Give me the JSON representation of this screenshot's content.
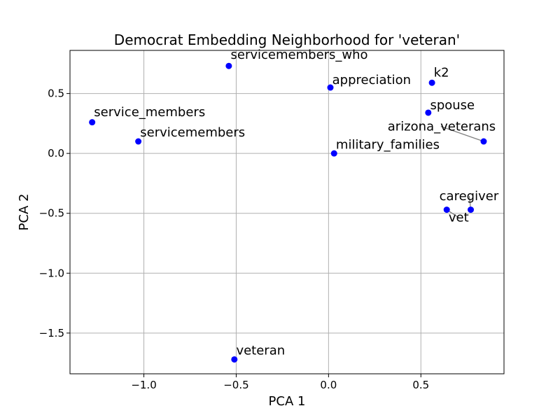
{
  "chart_data": {
    "type": "scatter",
    "title": "Democrat Embedding Neighborhood for 'veteran'",
    "xlabel": "PCA 1",
    "ylabel": "PCA 2",
    "xlim": [
      -1.4,
      0.95
    ],
    "ylim": [
      -1.84,
      0.86
    ],
    "xticks": [
      -1.0,
      -0.5,
      0.0,
      0.5
    ],
    "xtick_labels": [
      "−1.0",
      "−0.5",
      "0.0",
      "0.5"
    ],
    "yticks": [
      -1.5,
      -1.0,
      -0.5,
      0.0,
      0.5
    ],
    "ytick_labels": [
      "−1.5",
      "−1.0",
      "−0.5",
      "0.0",
      "0.5"
    ],
    "grid": true,
    "marker_color": "#0000ff",
    "connector_color": "#808080",
    "points": [
      {
        "label": "servicemembers_who",
        "x": -0.54,
        "y": 0.73,
        "label_x": -0.53,
        "label_y": 0.79
      },
      {
        "label": "appreciation",
        "x": 0.01,
        "y": 0.55,
        "label_x": 0.02,
        "label_y": 0.58
      },
      {
        "label": "k2",
        "x": 0.56,
        "y": 0.59,
        "label_x": 0.57,
        "label_y": 0.64
      },
      {
        "label": "service_members",
        "x": -1.28,
        "y": 0.26,
        "label_x": -1.27,
        "label_y": 0.31
      },
      {
        "label": "spouse",
        "x": 0.54,
        "y": 0.34,
        "label_x": 0.55,
        "label_y": 0.37
      },
      {
        "label": "arizona_veterans",
        "x": 0.84,
        "y": 0.1,
        "label_x": 0.32,
        "label_y": 0.19
      },
      {
        "label": "servicemembers",
        "x": -1.03,
        "y": 0.1,
        "label_x": -1.02,
        "label_y": 0.14
      },
      {
        "label": "military_families",
        "x": 0.03,
        "y": 0.0,
        "label_x": 0.04,
        "label_y": 0.04
      },
      {
        "label": "caregiver",
        "x": 0.77,
        "y": -0.47,
        "label_x": 0.6,
        "label_y": -0.39
      },
      {
        "label": "vet",
        "x": 0.64,
        "y": -0.47,
        "label_x": 0.65,
        "label_y": -0.57
      },
      {
        "label": "veteran",
        "x": -0.51,
        "y": -1.72,
        "label_x": -0.5,
        "label_y": -1.68
      }
    ]
  }
}
